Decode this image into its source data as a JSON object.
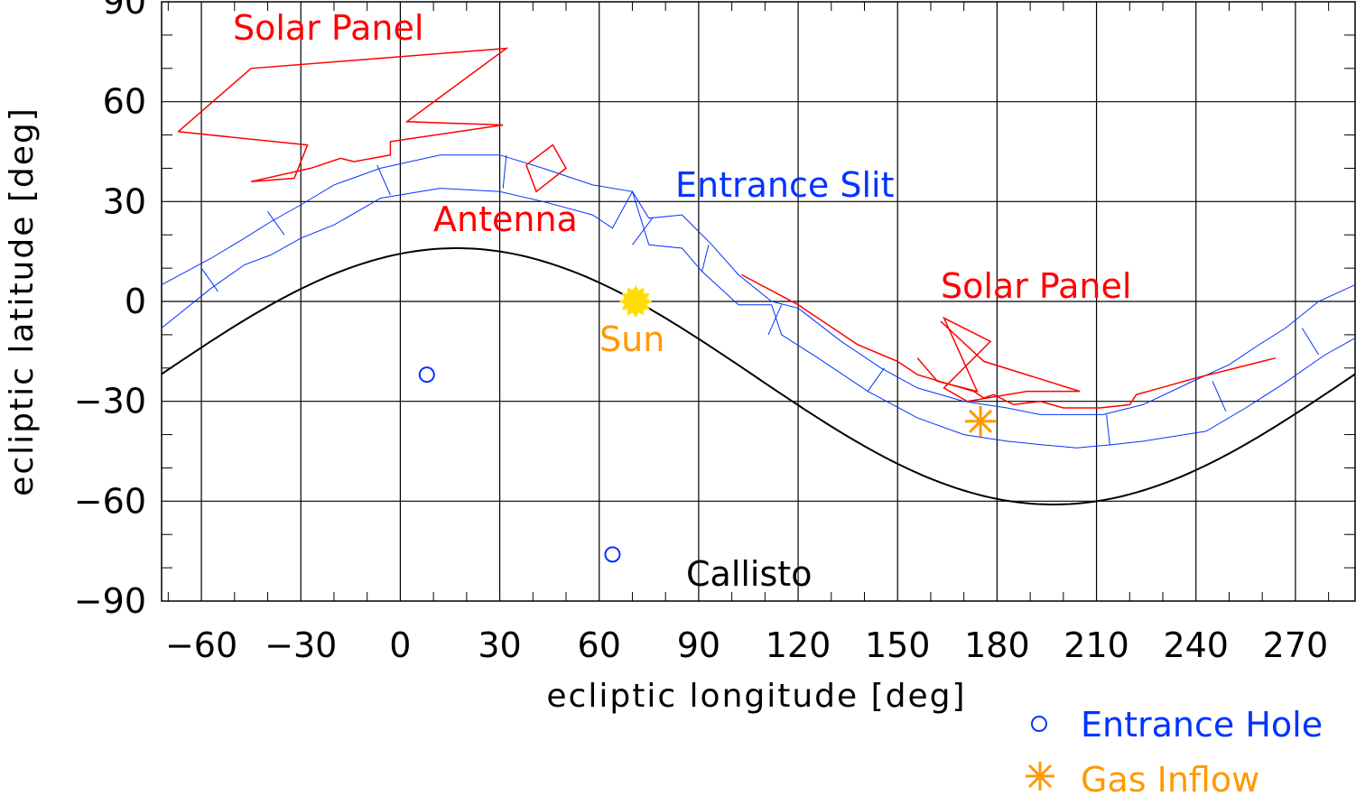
{
  "chart_data": {
    "type": "line",
    "xlabel": "ecliptic longitude [deg]",
    "ylabel": "ecliptic latitude [deg]",
    "xlim": [
      -72,
      288
    ],
    "ylim": [
      -90,
      90
    ],
    "xticks": [
      -60,
      -30,
      0,
      30,
      60,
      90,
      120,
      150,
      180,
      210,
      240,
      270
    ],
    "yticks": [
      90,
      60,
      30,
      0,
      -30,
      -60,
      -90
    ],
    "xtick_labels": [
      "−60",
      "−30",
      "0",
      "30",
      "60",
      "90",
      "120",
      "150",
      "180",
      "210",
      "240",
      "270"
    ],
    "ytick_labels": [
      "90",
      "60",
      "30",
      "0",
      "−30",
      "−60",
      "−90"
    ],
    "grid": true,
    "colors": {
      "solar_panel": "#ff0000",
      "antenna": "#ff0000",
      "slit": "#0033ff",
      "callisto": "#000000",
      "sun": "#ffdd00",
      "sun_label": "#ff9900",
      "gas": "#ff9900",
      "hole": "#0033ff"
    },
    "callisto_curve": {
      "center_lon": 17,
      "amplitude": 38.5,
      "offset": -22.5
    },
    "solar_panel_1": [
      [
        -67,
        51
      ],
      [
        -45,
        70
      ],
      [
        32,
        76
      ],
      [
        2,
        54
      ],
      [
        31,
        53
      ],
      [
        -3,
        48
      ],
      [
        -3,
        44
      ],
      [
        -14,
        42
      ],
      [
        -18,
        43
      ],
      [
        -27,
        40
      ],
      [
        -45,
        36
      ],
      [
        -32,
        37
      ],
      [
        -28,
        47
      ],
      [
        -67,
        51
      ]
    ],
    "antenna": [
      [
        38,
        41
      ],
      [
        46,
        47
      ],
      [
        50,
        40
      ],
      [
        41,
        33
      ],
      [
        38,
        41
      ]
    ],
    "slit_upper": [
      [
        -72,
        5
      ],
      [
        -57,
        13
      ],
      [
        -47,
        19
      ],
      [
        -39,
        24
      ],
      [
        -30,
        29
      ],
      [
        -20,
        35
      ],
      [
        -6,
        40
      ],
      [
        12,
        44
      ],
      [
        30,
        44
      ],
      [
        43,
        40
      ],
      [
        58,
        35
      ],
      [
        70,
        33
      ],
      [
        75,
        25
      ],
      [
        85,
        26
      ],
      [
        94,
        17
      ],
      [
        102,
        8
      ],
      [
        112,
        0
      ],
      [
        120,
        -2
      ],
      [
        133,
        -12
      ],
      [
        145,
        -20
      ],
      [
        156,
        -26
      ],
      [
        170,
        -30
      ],
      [
        183,
        -32
      ],
      [
        193,
        -34
      ],
      [
        204,
        -34
      ],
      [
        212,
        -34
      ],
      [
        224,
        -31
      ],
      [
        239,
        -24
      ],
      [
        250,
        -19
      ],
      [
        259,
        -13
      ],
      [
        267,
        -8
      ],
      [
        277,
        0
      ],
      [
        288,
        5
      ]
    ],
    "slit_lower": [
      [
        -72,
        -8
      ],
      [
        -57,
        4
      ],
      [
        -47,
        11
      ],
      [
        -39,
        14
      ],
      [
        -30,
        19
      ],
      [
        -20,
        23
      ],
      [
        -6,
        31
      ],
      [
        12,
        34
      ],
      [
        30,
        33
      ],
      [
        43,
        30
      ],
      [
        58,
        26
      ],
      [
        64,
        22
      ],
      [
        70,
        33
      ],
      [
        75,
        17
      ],
      [
        85,
        16
      ],
      [
        91,
        9
      ],
      [
        102,
        -1
      ],
      [
        112,
        -1
      ],
      [
        115,
        -10
      ],
      [
        126,
        -17
      ],
      [
        141,
        -27
      ],
      [
        156,
        -35
      ],
      [
        170,
        -40
      ],
      [
        183,
        -42
      ],
      [
        193,
        -43
      ],
      [
        204,
        -44
      ],
      [
        215,
        -43
      ],
      [
        224,
        -42
      ],
      [
        243,
        -39
      ],
      [
        255,
        -32
      ],
      [
        266,
        -25
      ],
      [
        279,
        -16
      ],
      [
        288,
        -11
      ]
    ],
    "slit_ticks": [
      [
        [
          -60,
          10
        ],
        [
          -55,
          3
        ]
      ],
      [
        [
          -40,
          27
        ],
        [
          -35,
          20
        ]
      ],
      [
        [
          -7,
          41
        ],
        [
          -3,
          32
        ]
      ],
      [
        [
          32,
          44
        ],
        [
          31,
          34
        ]
      ],
      [
        [
          76,
          25
        ],
        [
          70,
          17
        ]
      ],
      [
        [
          93,
          17
        ],
        [
          91,
          9
        ]
      ],
      [
        [
          115,
          -1
        ],
        [
          111,
          -10
        ]
      ],
      [
        [
          146,
          -20
        ],
        [
          141,
          -27
        ]
      ],
      [
        [
          213,
          -34
        ],
        [
          214,
          -43
        ]
      ],
      [
        [
          245,
          -24
        ],
        [
          249,
          -33
        ]
      ],
      [
        [
          272,
          -8
        ],
        [
          277,
          -16
        ]
      ]
    ],
    "solar_panel_2": [
      [
        103,
        8
      ],
      [
        120,
        -1
      ],
      [
        138,
        -13
      ],
      [
        150,
        -18
      ],
      [
        156,
        -22
      ],
      [
        166,
        -25
      ],
      [
        173,
        -27
      ],
      [
        176,
        -29
      ],
      [
        179,
        -28
      ],
      [
        185,
        -31
      ],
      [
        193,
        -30
      ],
      [
        200,
        -32
      ],
      [
        211,
        -32
      ],
      [
        220,
        -31
      ],
      [
        222,
        -28
      ],
      [
        240,
        -23
      ],
      [
        264,
        -17
      ]
    ],
    "solar_panel_2_spike": [
      [
        156,
        -17
      ],
      [
        162,
        -24
      ],
      [
        174,
        -27
      ],
      [
        164,
        -5
      ],
      [
        178,
        -12
      ],
      [
        164,
        -26
      ],
      [
        171,
        -30
      ],
      [
        189,
        -27
      ],
      [
        205,
        -27
      ],
      [
        176,
        -18
      ],
      [
        163,
        -6
      ]
    ],
    "entrance_holes": [
      [
        8,
        -22
      ],
      [
        64,
        -76
      ]
    ],
    "sun": [
      71,
      0
    ],
    "gas_inflow": [
      175,
      -36
    ],
    "annotations": {
      "solar_panel_top": "Solar Panel",
      "antenna": "Antenna",
      "entrance_slit": "Entrance Slit",
      "solar_panel_right": "Solar Panel",
      "sun": "Sun",
      "callisto": "Callisto"
    },
    "legend": {
      "placement": "bottom-right",
      "entries": [
        {
          "name": "Entrance Hole",
          "symbol": "circle",
          "color": "#0033ff"
        },
        {
          "name": "Gas Inflow",
          "symbol": "asterisk",
          "color": "#ff9900"
        }
      ]
    }
  }
}
